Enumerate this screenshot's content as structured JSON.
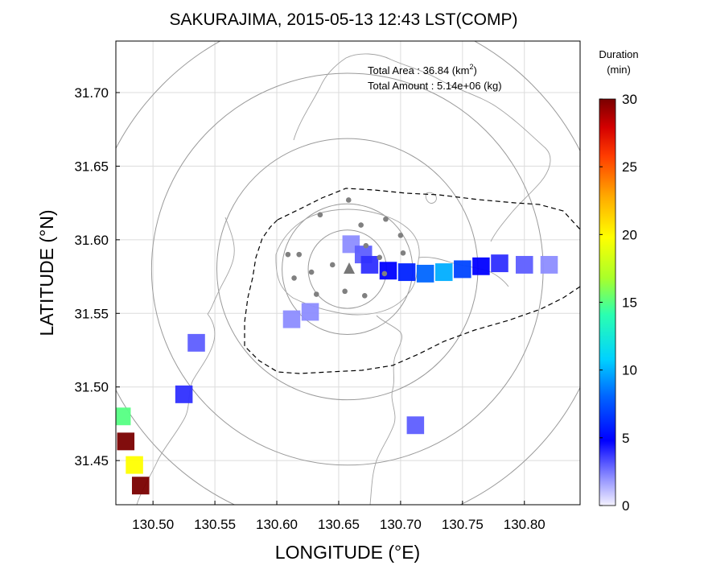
{
  "title": "SAKURAJIMA, 2015-05-13 12:43 LST(COMP)",
  "chart_data": {
    "type": "heatmap",
    "title": "SAKURAJIMA, 2015-05-13 12:43 LST(COMP)",
    "xlabel": "LONGITUDE (°E)",
    "ylabel": "LATITUDE (°N)",
    "xlim": [
      130.47,
      130.845
    ],
    "ylim": [
      31.42,
      31.735
    ],
    "xticks": [
      "130.50",
      "130.55",
      "130.60",
      "130.65",
      "130.70",
      "130.75",
      "130.80"
    ],
    "yticks": [
      "31.45",
      "31.50",
      "31.55",
      "31.60",
      "31.65",
      "31.70"
    ],
    "grid": true,
    "annotations": {
      "area_label": "Total Area   : 36.84 (km",
      "area_sup": "2",
      "area_close": ")",
      "amount": "Total Amount : 5.14e+06 (kg)"
    },
    "colorbar": {
      "title_line1": "Duration",
      "title_line2": "(min)",
      "min": 0,
      "max": 30,
      "ticks": [
        "0",
        "5",
        "10",
        "15",
        "20",
        "25",
        "30"
      ]
    },
    "vent": {
      "lon": 130.657,
      "lat": 31.58
    },
    "range_rings_km": [
      3,
      5,
      10,
      15,
      20
    ],
    "stations": [
      [
        130.635,
        31.617
      ],
      [
        130.658,
        31.627
      ],
      [
        130.688,
        31.614
      ],
      [
        130.7,
        31.603
      ],
      [
        130.609,
        31.59
      ],
      [
        130.628,
        31.578
      ],
      [
        130.645,
        31.583
      ],
      [
        130.672,
        31.596
      ],
      [
        130.655,
        31.565
      ],
      [
        130.632,
        31.563
      ],
      [
        130.614,
        31.574
      ],
      [
        130.687,
        31.577
      ],
      [
        130.671,
        31.562
      ],
      [
        130.683,
        31.588
      ],
      [
        130.702,
        31.591
      ],
      [
        130.618,
        31.59
      ],
      [
        130.668,
        31.61
      ]
    ],
    "duration_cells": [
      {
        "lon": 130.66,
        "lat": 31.597,
        "min": 2
      },
      {
        "lon": 130.67,
        "lat": 31.59,
        "min": 3
      },
      {
        "lon": 130.675,
        "lat": 31.583,
        "min": 4
      },
      {
        "lon": 130.69,
        "lat": 31.579,
        "min": 5
      },
      {
        "lon": 130.705,
        "lat": 31.578,
        "min": 6
      },
      {
        "lon": 130.72,
        "lat": 31.577,
        "min": 8
      },
      {
        "lon": 130.735,
        "lat": 31.578,
        "min": 10
      },
      {
        "lon": 130.75,
        "lat": 31.58,
        "min": 7
      },
      {
        "lon": 130.765,
        "lat": 31.582,
        "min": 5
      },
      {
        "lon": 130.78,
        "lat": 31.584,
        "min": 4
      },
      {
        "lon": 130.8,
        "lat": 31.583,
        "min": 3
      },
      {
        "lon": 130.82,
        "lat": 31.583,
        "min": 2
      },
      {
        "lon": 130.612,
        "lat": 31.546,
        "min": 2
      },
      {
        "lon": 130.627,
        "lat": 31.551,
        "min": 2
      },
      {
        "lon": 130.535,
        "lat": 31.53,
        "min": 3
      },
      {
        "lon": 130.525,
        "lat": 31.495,
        "min": 4
      },
      {
        "lon": 130.475,
        "lat": 31.48,
        "min": 15
      },
      {
        "lon": 130.478,
        "lat": 31.463,
        "min": 30
      },
      {
        "lon": 130.485,
        "lat": 31.447,
        "min": 20
      },
      {
        "lon": 130.49,
        "lat": 31.433,
        "min": 30
      },
      {
        "lon": 130.712,
        "lat": 31.474,
        "min": 3
      }
    ]
  }
}
